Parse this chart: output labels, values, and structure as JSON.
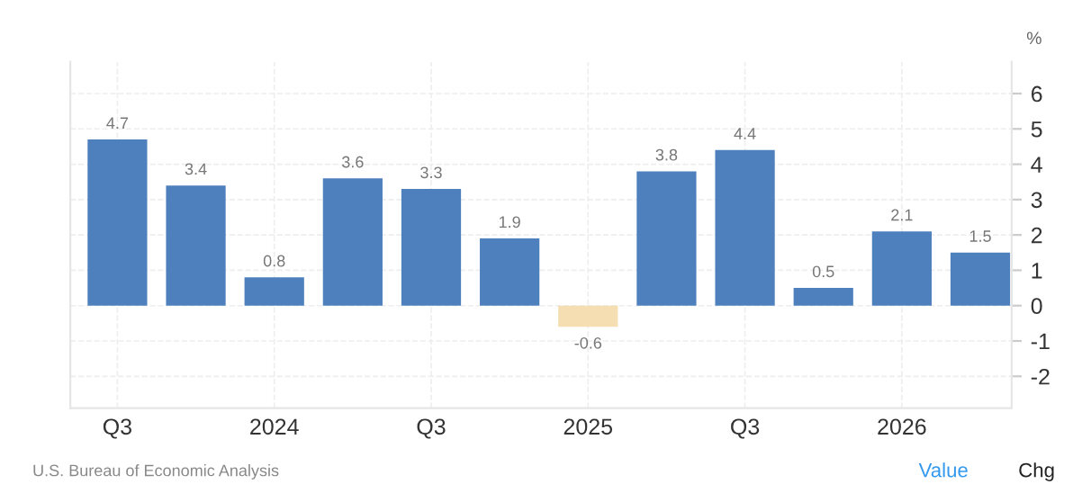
{
  "chart_data": {
    "type": "bar",
    "categories": [
      "Q3",
      null,
      "2024",
      null,
      "Q3",
      null,
      "2025",
      null,
      "Q3",
      null,
      "2026",
      null
    ],
    "values": [
      4.7,
      3.4,
      0.8,
      3.6,
      3.3,
      1.9,
      -0.6,
      3.8,
      4.4,
      0.5,
      2.1,
      1.5
    ],
    "colors": [
      "#4e80bd",
      "#4e80bd",
      "#4e80bd",
      "#4e80bd",
      "#4e80bd",
      "#4e80bd",
      "#f4deb2",
      "#4e80bd",
      "#4e80bd",
      "#4e80bd",
      "#4e80bd",
      "#4e80bd"
    ],
    "data_labels": true,
    "ylabel": "%",
    "ylim": [
      -2.9,
      6.9
    ],
    "yticks": [
      -2,
      -1,
      0,
      1,
      2,
      3,
      4,
      5,
      6
    ],
    "grid": true,
    "annotations": [
      "U.S. Bureau of Economic Analysis",
      "Value",
      "Chg"
    ]
  }
}
